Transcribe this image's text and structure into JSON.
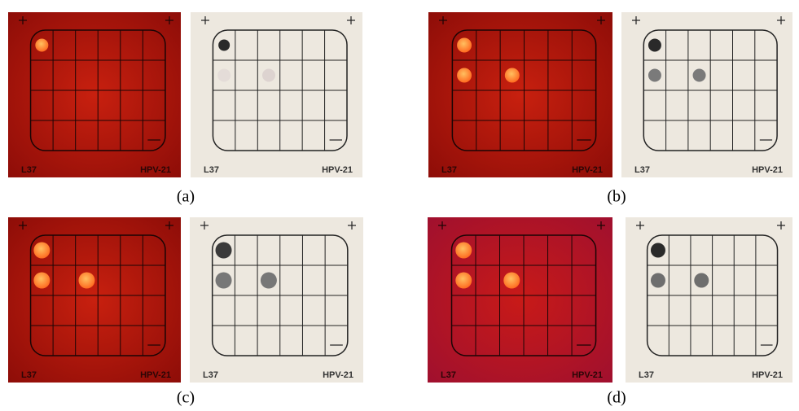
{
  "panels": [
    {
      "caption": "(a)",
      "images": [
        {
          "left_label": "L37",
          "right_label": "HPV-21"
        },
        {
          "left_label": "L37",
          "right_label": "HPV-21"
        }
      ]
    },
    {
      "caption": "(b)",
      "images": [
        {
          "left_label": "L37",
          "right_label": "HPV-21"
        },
        {
          "left_label": "L37",
          "right_label": "HPV-21"
        }
      ]
    },
    {
      "caption": "(c)",
      "images": [
        {
          "left_label": "L37",
          "right_label": "HPV-21"
        },
        {
          "left_label": "L37",
          "right_label": "HPV-21"
        }
      ]
    },
    {
      "caption": "(d)",
      "images": [
        {
          "left_label": "L37",
          "right_label": "HPV-21"
        },
        {
          "left_label": "L37",
          "right_label": "HPV-21"
        }
      ]
    }
  ]
}
